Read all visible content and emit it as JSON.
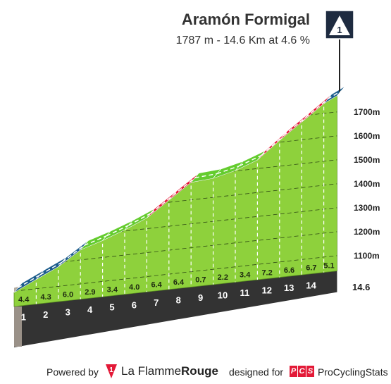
{
  "header": {
    "climb_name": "Aramón Formigal",
    "climb_summary": "1787 m - 14.6 Km at 4.6 %",
    "category": "1"
  },
  "chart_data": {
    "type": "area",
    "title": "Aramón Formigal",
    "subtitle": "1787 m - 14.6 Km at 4.6 %",
    "km_markers": [
      "1",
      "2",
      "3",
      "4",
      "5",
      "6",
      "7",
      "8",
      "9",
      "10",
      "11",
      "12",
      "13",
      "14"
    ],
    "segment_gradients": [
      "4.4",
      "4.3",
      "6.0",
      "2.9",
      "3.4",
      "4.0",
      "6.4",
      "6.4",
      "0.7",
      "2.2",
      "3.4",
      "7.2",
      "6.6",
      "6.7",
      "5.1"
    ],
    "end_distance_label": "14.6",
    "altitude_ticks": [
      {
        "value": 1100,
        "label": "1100m"
      },
      {
        "value": 1200,
        "label": "1200m"
      },
      {
        "value": 1300,
        "label": "1300m"
      },
      {
        "value": 1400,
        "label": "1400m"
      },
      {
        "value": 1500,
        "label": "1500m"
      },
      {
        "value": 1600,
        "label": "1600m"
      },
      {
        "value": 1700,
        "label": "1700m"
      }
    ],
    "profile": {
      "x_km": [
        0,
        1,
        2,
        3,
        4,
        5,
        6,
        7,
        8,
        9,
        10,
        11,
        12,
        13,
        14,
        14.6
      ],
      "altitude_m": [
        1114,
        1158,
        1201,
        1261,
        1290,
        1324,
        1364,
        1428,
        1492,
        1499,
        1521,
        1555,
        1627,
        1693,
        1760,
        1787
      ]
    },
    "segment_colors": [
      "#1d5d8c",
      "#1d5d8c",
      "#1d5d8c",
      "#64cc2e",
      "#64cc2e",
      "#64cc2e",
      "#e31937",
      "#e31937",
      "#64cc2e",
      "#64cc2e",
      "#64cc2e",
      "#e31937",
      "#e31937",
      "#e31937",
      "#1d5d8c"
    ],
    "wall_color": "#8ed13c",
    "base_color": "#333333"
  },
  "footer": {
    "powered_by": "Powered by",
    "flamme_badge": "1",
    "flamme_word_a": "La Flamme",
    "flamme_word_b": "Rouge",
    "designed_for": "designed for",
    "pcs_letters": [
      "P",
      "C",
      "S"
    ],
    "pcs_name": "ProCyclingStats"
  }
}
